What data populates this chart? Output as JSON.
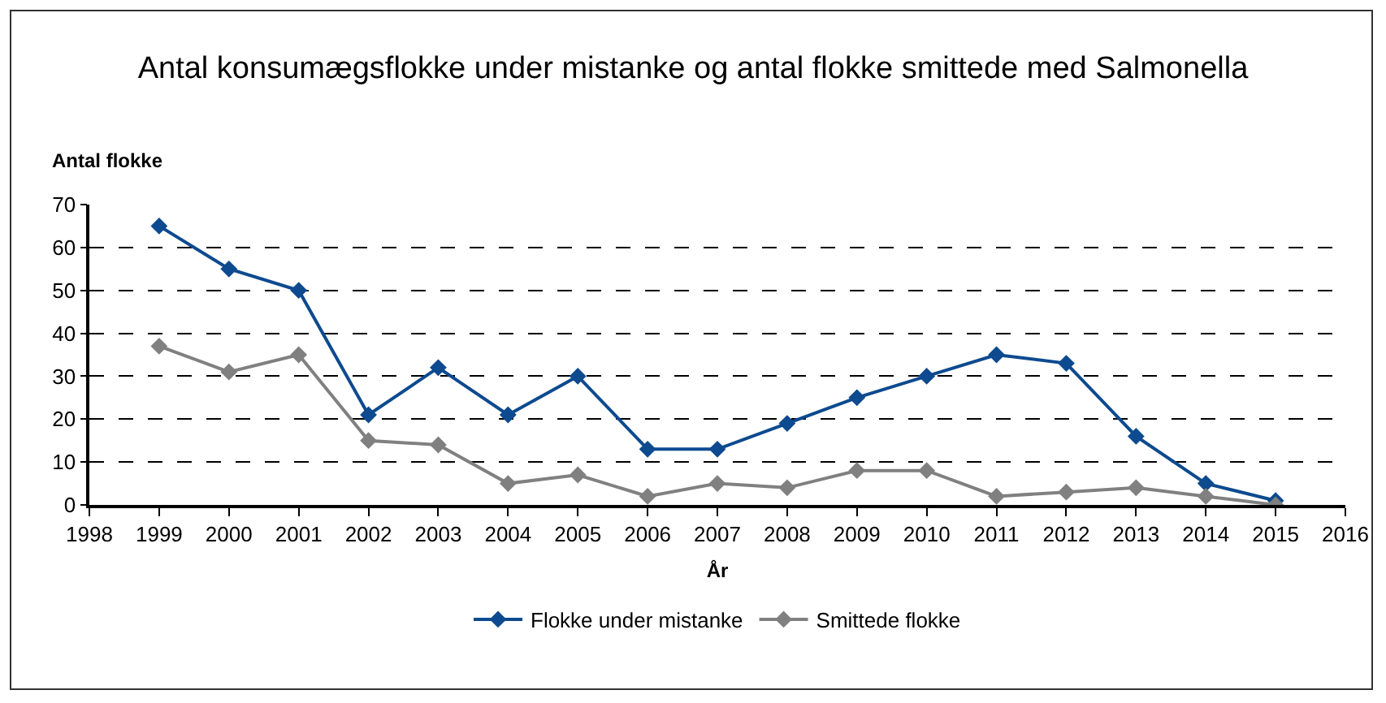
{
  "chart_data": {
    "type": "line",
    "title": "Antal konsumægsflokke under mistanke og antal flokke smittede med Salmonella",
    "xlabel": "År",
    "ylabel": "Antal flokke",
    "x": [
      1999,
      2000,
      2001,
      2002,
      2003,
      2004,
      2005,
      2006,
      2007,
      2008,
      2009,
      2010,
      2011,
      2012,
      2013,
      2014,
      2015
    ],
    "series": [
      {
        "name": "Flokke under mistanke",
        "color": "#0d4a8f",
        "values": [
          65,
          55,
          50,
          21,
          32,
          21,
          30,
          13,
          13,
          19,
          25,
          30,
          35,
          33,
          16,
          5,
          1
        ]
      },
      {
        "name": "Smittede flokke",
        "color": "#808080",
        "values": [
          37,
          31,
          35,
          15,
          14,
          5,
          7,
          2,
          5,
          4,
          8,
          8,
          2,
          3,
          4,
          2,
          0
        ]
      }
    ],
    "xlim": [
      1998,
      2016
    ],
    "xticks": [
      1998,
      1999,
      2000,
      2001,
      2002,
      2003,
      2004,
      2005,
      2006,
      2007,
      2008,
      2009,
      2010,
      2011,
      2012,
      2013,
      2014,
      2015,
      2016
    ],
    "ylim": [
      0,
      70
    ],
    "yticks": [
      0,
      10,
      20,
      30,
      40,
      50,
      60,
      70
    ],
    "grid": "y",
    "legend": "bottom",
    "marker": "diamond",
    "line_style": "solid"
  }
}
